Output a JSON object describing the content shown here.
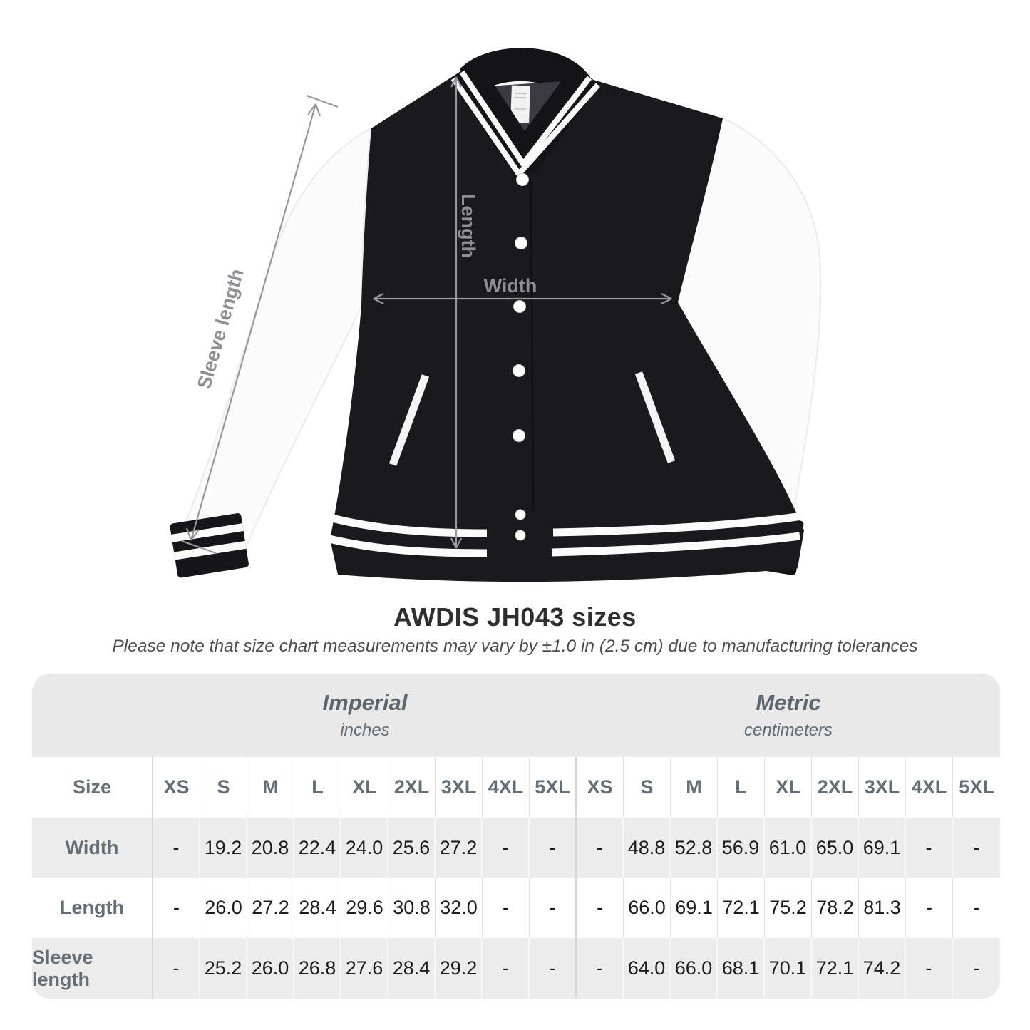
{
  "title": "AWDIS JH043 sizes",
  "subtitle": "Please note that size chart measurements may vary by ±1.0 in (2.5 cm) due to manufacturing tolerances",
  "figure": {
    "annotations": {
      "sleeve_length_label": "Sleeve length",
      "length_label": "Length",
      "width_label": "Width"
    },
    "colors": {
      "jacket_body": "#1a1a1c",
      "jacket_sleeves": "#fbfbfc",
      "stripes": "#fbfbfb",
      "annotation_line": "#98989c",
      "annotation_text": "#8d8f93"
    }
  },
  "size_chart": {
    "sections": [
      {
        "name": "Imperial",
        "unit": "inches"
      },
      {
        "name": "Metric",
        "unit": "centimeters"
      }
    ],
    "size_header": "Size",
    "sizes": [
      "XS",
      "S",
      "M",
      "L",
      "XL",
      "2XL",
      "3XL",
      "4XL",
      "5XL"
    ],
    "rows": [
      {
        "label": "Width",
        "imperial": [
          "-",
          "19.2",
          "20.8",
          "22.4",
          "24.0",
          "25.6",
          "27.2",
          "-",
          "-"
        ],
        "metric": [
          "-",
          "48.8",
          "52.8",
          "56.9",
          "61.0",
          "65.0",
          "69.1",
          "-",
          "-"
        ]
      },
      {
        "label": "Length",
        "imperial": [
          "-",
          "26.0",
          "27.2",
          "28.4",
          "29.6",
          "30.8",
          "32.0",
          "-",
          "-"
        ],
        "metric": [
          "-",
          "66.0",
          "69.1",
          "72.1",
          "75.2",
          "78.2",
          "81.3",
          "-",
          "-"
        ]
      },
      {
        "label": "Sleeve length",
        "imperial": [
          "-",
          "25.2",
          "26.0",
          "26.8",
          "27.6",
          "28.4",
          "29.2",
          "-",
          "-"
        ],
        "metric": [
          "-",
          "64.0",
          "66.0",
          "68.1",
          "70.1",
          "72.1",
          "74.2",
          "-",
          "-"
        ]
      }
    ]
  }
}
